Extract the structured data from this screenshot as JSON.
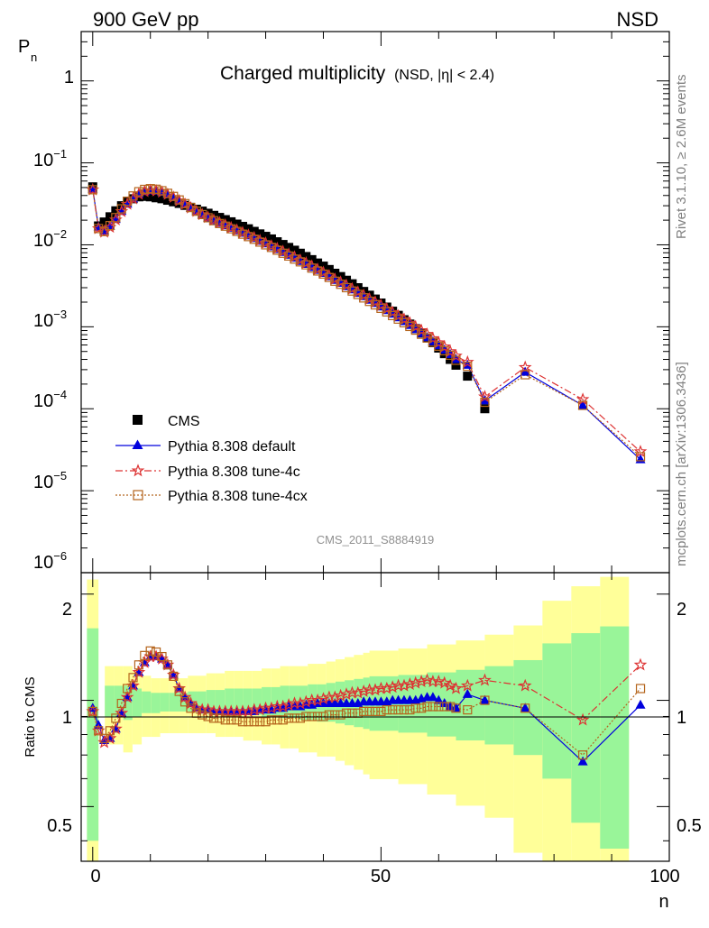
{
  "header": {
    "left": "900 GeV pp",
    "right": "NSD"
  },
  "side": {
    "top": "Rivet 3.1.10, ≥ 2.6M events",
    "bottom": "mcplots.cern.ch [arXiv:1306.3436]"
  },
  "chart_data": {
    "type": "line",
    "title": "Charged multiplicity",
    "subtitle": "(NSD, |η| < 2.4)",
    "analysis": "CMS_2011_S8884919",
    "xlabel": "n",
    "ylabel": "P",
    "ylabel_sub": "n",
    "ratio_ylabel": "Ratio to CMS",
    "xlim": [
      -2,
      100
    ],
    "ylim_main": [
      1e-06,
      4
    ],
    "ylog_main": true,
    "ylim_ratio": [
      0.35,
      2.3
    ],
    "ylog_ratio": true,
    "x_ticks": [
      "0",
      "50",
      "100"
    ],
    "main_y_ticks": [
      "10^-6",
      "10^-5",
      "10^-4",
      "10^-3",
      "10^-2",
      "10^-1",
      "1"
    ],
    "ratio_y_ticks": [
      "0.5",
      "1",
      "2"
    ],
    "legend_placement": "lower-left",
    "colors": {
      "cms": "#000000",
      "default": "#0000dd",
      "tune4c": "#dd3333",
      "tune4cx": "#b5651d",
      "band_inner": "#99f599",
      "band_outer": "#ffff99"
    },
    "legend": [
      {
        "key": "cms",
        "label": "CMS"
      },
      {
        "key": "default",
        "label": "Pythia 8.308 default"
      },
      {
        "key": "tune4c",
        "label": "Pythia 8.308 tune-4c"
      },
      {
        "key": "tune4cx",
        "label": "Pythia 8.308 tune-4cx"
      }
    ],
    "x": [
      0,
      1,
      2,
      3,
      4,
      5,
      6,
      7,
      8,
      9,
      10,
      11,
      12,
      13,
      14,
      15,
      16,
      17,
      18,
      19,
      20,
      21,
      22,
      23,
      24,
      25,
      26,
      27,
      28,
      29,
      30,
      31,
      32,
      33,
      34,
      35,
      36,
      37,
      38,
      39,
      40,
      41,
      42,
      43,
      44,
      45,
      46,
      47,
      48,
      49,
      50,
      51,
      52,
      53,
      54,
      55,
      56,
      57,
      58,
      59,
      60,
      61,
      62,
      63,
      65,
      68,
      75,
      85,
      95
    ],
    "series": [
      {
        "key": "cms",
        "name": "CMS",
        "values": [
          0.051,
          0.017,
          0.019,
          0.022,
          0.026,
          0.03,
          0.034,
          0.0365,
          0.0385,
          0.039,
          0.0385,
          0.0375,
          0.0365,
          0.035,
          0.0335,
          0.032,
          0.0303,
          0.0287,
          0.0272,
          0.0258,
          0.0243,
          0.0229,
          0.0216,
          0.0203,
          0.0191,
          0.0179,
          0.0168,
          0.0157,
          0.0146,
          0.0136,
          0.0127,
          0.0118,
          0.0109,
          0.0101,
          0.0093,
          0.0086,
          0.0079,
          0.0072,
          0.0066,
          0.006,
          0.0055,
          0.005,
          0.0045,
          0.0041,
          0.0037,
          0.00335,
          0.003,
          0.0027,
          0.00243,
          0.00218,
          0.00195,
          0.00174,
          0.00155,
          0.00138,
          0.00122,
          0.00108,
          0.00095,
          0.00084,
          0.00073,
          0.00064,
          0.00055,
          0.00047,
          0.0004,
          0.00034,
          0.00025,
          0.0001,
          0.0,
          0.0,
          0.0
        ]
      },
      {
        "key": "default",
        "name": "Pythia 8.308 default",
        "values": [
          0.048,
          0.0165,
          0.0148,
          0.0168,
          0.0205,
          0.0257,
          0.0315,
          0.0365,
          0.0415,
          0.0445,
          0.0458,
          0.0453,
          0.0437,
          0.041,
          0.0378,
          0.0343,
          0.031,
          0.028,
          0.0254,
          0.0232,
          0.0214,
          0.0198,
          0.0184,
          0.0172,
          0.016,
          0.0149,
          0.0139,
          0.0129,
          0.012,
          0.0111,
          0.0103,
          0.0095,
          0.0088,
          0.0081,
          0.0075,
          0.0069,
          0.0063,
          0.0058,
          0.0053,
          0.0049,
          0.0045,
          0.0041,
          0.0037,
          0.0034,
          0.0031,
          0.00283,
          0.00257,
          0.00234,
          0.00212,
          0.00193,
          0.00175,
          0.00158,
          0.00143,
          0.00129,
          0.00116,
          0.00104,
          0.00093,
          0.00083,
          0.00074,
          0.00066,
          0.00059,
          0.00052,
          0.00046,
          0.0004,
          0.00034,
          0.000125,
          0.00028,
          0.00011,
          2.4e-05
        ]
      },
      {
        "key": "tune4c",
        "name": "Pythia 8.308 tune-4c",
        "values": [
          0.047,
          0.0158,
          0.0143,
          0.0164,
          0.0202,
          0.0255,
          0.0313,
          0.0365,
          0.0416,
          0.0447,
          0.046,
          0.0455,
          0.0439,
          0.0412,
          0.038,
          0.0345,
          0.0312,
          0.0282,
          0.0256,
          0.0234,
          0.0216,
          0.02,
          0.0186,
          0.0174,
          0.0162,
          0.0151,
          0.0141,
          0.0131,
          0.0122,
          0.0113,
          0.0105,
          0.0097,
          0.009,
          0.0083,
          0.0077,
          0.0071,
          0.0065,
          0.006,
          0.0055,
          0.005,
          0.0046,
          0.0042,
          0.0038,
          0.0035,
          0.0032,
          0.0029,
          0.00265,
          0.00241,
          0.00219,
          0.002,
          0.00182,
          0.00165,
          0.0015,
          0.00136,
          0.00123,
          0.00111,
          0.001,
          0.0009,
          0.00081,
          0.00072,
          0.00064,
          0.00057,
          0.0005,
          0.00044,
          0.00037,
          0.00014,
          0.00032,
          0.00013,
          3e-05
        ]
      },
      {
        "key": "tune4cx",
        "name": "Pythia 8.308 tune-4cx",
        "values": [
          0.047,
          0.0158,
          0.0145,
          0.0172,
          0.0215,
          0.0275,
          0.034,
          0.0395,
          0.0445,
          0.0475,
          0.0485,
          0.0477,
          0.0457,
          0.0425,
          0.039,
          0.0353,
          0.0318,
          0.0285,
          0.0257,
          0.0234,
          0.0214,
          0.0197,
          0.0182,
          0.0169,
          0.0157,
          0.0146,
          0.0135,
          0.0126,
          0.0117,
          0.0108,
          0.01,
          0.0093,
          0.0086,
          0.0079,
          0.0073,
          0.0067,
          0.0062,
          0.0057,
          0.0052,
          0.0048,
          0.0044,
          0.004,
          0.0036,
          0.0033,
          0.003,
          0.00273,
          0.00248,
          0.00225,
          0.00204,
          0.00185,
          0.00168,
          0.00152,
          0.00137,
          0.00124,
          0.00112,
          0.00101,
          0.00091,
          0.00081,
          0.00073,
          0.00065,
          0.00058,
          0.00051,
          0.00045,
          0.00039,
          0.00033,
          0.00012,
          0.00026,
          0.00011,
          2.6e-05
        ]
      }
    ],
    "ratio": {
      "band_inner": [
        [
          1.6,
          0.4
        ],
        [
          1.1,
          0.9
        ],
        [
          1.1,
          0.9
        ],
        [
          1.1,
          0.88
        ],
        [
          1.08,
          0.9
        ],
        [
          1.06,
          0.92
        ],
        [
          1.05,
          0.92
        ],
        [
          1.05,
          0.93
        ],
        [
          1.05,
          0.93
        ],
        [
          1.05,
          0.93
        ],
        [
          1.06,
          0.93
        ],
        [
          1.06,
          0.93
        ],
        [
          1.07,
          0.93
        ],
        [
          1.07,
          0.92
        ],
        [
          1.08,
          0.92
        ],
        [
          1.08,
          0.92
        ],
        [
          1.08,
          0.91
        ],
        [
          1.08,
          0.91
        ],
        [
          1.09,
          0.9
        ],
        [
          1.09,
          0.9
        ],
        [
          1.1,
          0.89
        ],
        [
          1.1,
          0.89
        ],
        [
          1.1,
          0.88
        ],
        [
          1.11,
          0.88
        ],
        [
          1.11,
          0.87
        ],
        [
          1.12,
          0.87
        ],
        [
          1.13,
          0.86
        ],
        [
          1.14,
          0.85
        ],
        [
          1.15,
          0.84
        ],
        [
          1.16,
          0.83
        ],
        [
          1.17,
          0.82
        ],
        [
          1.18,
          0.81
        ],
        [
          1.2,
          0.79
        ],
        [
          1.22,
          0.77
        ],
        [
          1.25,
          0.75
        ],
        [
          1.3,
          0.7
        ],
        [
          1.45,
          0.6
        ],
        [
          1.55,
          0.45
        ],
        [
          1.62,
          0.38
        ]
      ],
      "series": [
        {
          "key": "default",
          "values": [
            0.95,
            0.85,
            0.77,
            0.78,
            0.83,
            0.92,
            1.02,
            1.1,
            1.2,
            1.28,
            1.33,
            1.33,
            1.31,
            1.26,
            1.18,
            1.08,
            1.02,
            0.98,
            0.95,
            0.94,
            0.94,
            0.93,
            0.93,
            0.93,
            0.93,
            0.93,
            0.93,
            0.93,
            0.93,
            0.94,
            0.94,
            0.94,
            0.95,
            0.95,
            0.96,
            0.96,
            0.96,
            0.97,
            0.97,
            0.98,
            0.98,
            0.98,
            0.98,
            0.98,
            0.98,
            0.98,
            0.98,
            0.99,
            0.99,
            0.99,
            0.99,
            0.99,
            1.0,
            1.0,
            1.0,
            1.0,
            1.0,
            1.01,
            1.02,
            1.02,
            1.0,
            0.98,
            0.96,
            0.95,
            1.04,
            1.0,
            0.95,
            0.67,
            0.97
          ]
        },
        {
          "key": "tune4c",
          "values": [
            0.93,
            0.82,
            0.76,
            0.78,
            0.83,
            0.92,
            1.02,
            1.1,
            1.2,
            1.28,
            1.33,
            1.33,
            1.31,
            1.26,
            1.18,
            1.08,
            1.02,
            0.98,
            0.95,
            0.94,
            0.94,
            0.93,
            0.93,
            0.93,
            0.93,
            0.93,
            0.93,
            0.93,
            0.94,
            0.94,
            0.95,
            0.95,
            0.96,
            0.96,
            0.97,
            0.98,
            0.98,
            0.99,
            1.0,
            1.0,
            1.01,
            1.02,
            1.02,
            1.03,
            1.04,
            1.05,
            1.05,
            1.06,
            1.07,
            1.07,
            1.08,
            1.08,
            1.09,
            1.1,
            1.1,
            1.11,
            1.12,
            1.13,
            1.14,
            1.13,
            1.13,
            1.12,
            1.1,
            1.08,
            1.1,
            1.14,
            1.1,
            0.88,
            1.26
          ]
        },
        {
          "key": "tune4cx",
          "values": [
            0.93,
            0.82,
            0.78,
            0.82,
            0.89,
            0.98,
            1.08,
            1.16,
            1.26,
            1.34,
            1.38,
            1.37,
            1.33,
            1.26,
            1.17,
            1.06,
            0.99,
            0.95,
            0.92,
            0.91,
            0.9,
            0.89,
            0.89,
            0.88,
            0.88,
            0.88,
            0.87,
            0.87,
            0.87,
            0.87,
            0.87,
            0.88,
            0.88,
            0.88,
            0.89,
            0.89,
            0.89,
            0.9,
            0.9,
            0.9,
            0.9,
            0.91,
            0.91,
            0.91,
            0.92,
            0.92,
            0.92,
            0.93,
            0.93,
            0.93,
            0.93,
            0.94,
            0.94,
            0.94,
            0.94,
            0.94,
            0.95,
            0.95,
            0.96,
            0.96,
            0.96,
            0.96,
            0.96,
            0.95,
            0.94,
            1.0,
            0.95,
            0.7,
            1.08
          ]
        }
      ]
    }
  }
}
